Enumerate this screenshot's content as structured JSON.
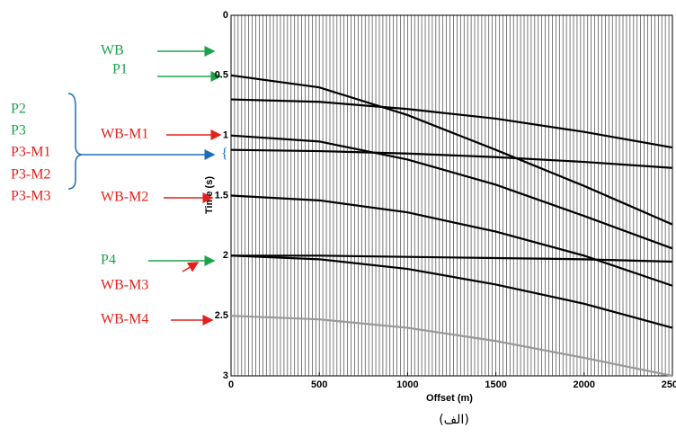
{
  "chart_data": {
    "type": "line",
    "title": "(الف)",
    "xlabel": "Offset (m)",
    "ylabel": "Time (s)",
    "x": [
      0,
      500,
      1000,
      1500,
      2000,
      2500
    ],
    "xlim": [
      0,
      2500
    ],
    "xticks": [
      0,
      500,
      1000,
      1500,
      2000,
      2500
    ],
    "ylim": [
      3,
      0
    ],
    "yticks": [
      0,
      0.5,
      1,
      1.5,
      2,
      2.5,
      3
    ],
    "series": [
      {
        "color": "#000000",
        "values": [
          0.5,
          0.6,
          0.83,
          1.12,
          1.42,
          1.74
        ]
      },
      {
        "color": "#000000",
        "values": [
          0.7,
          0.72,
          0.78,
          0.86,
          0.97,
          1.1
        ]
      },
      {
        "color": "#000000",
        "values": [
          1.12,
          1.13,
          1.15,
          1.18,
          1.22,
          1.27
        ]
      },
      {
        "color": "#000000",
        "values": [
          1.0,
          1.05,
          1.2,
          1.41,
          1.67,
          1.94
        ]
      },
      {
        "color": "#000000",
        "values": [
          1.5,
          1.54,
          1.64,
          1.8,
          2.0,
          2.25
        ]
      },
      {
        "color": "#000000",
        "values": [
          2.0,
          2.0,
          2.01,
          2.02,
          2.03,
          2.05
        ]
      },
      {
        "color": "#000000",
        "values": [
          2.0,
          2.03,
          2.11,
          2.24,
          2.4,
          2.6
        ]
      },
      {
        "color": "#999999",
        "values": [
          2.5,
          2.53,
          2.6,
          2.71,
          2.85,
          3.0
        ]
      }
    ],
    "annotations": [
      {
        "text": "WB",
        "color": "#1aa34a"
      },
      {
        "text": "P1",
        "color": "#1aa34a"
      },
      {
        "text": "WB-M1",
        "color": "#e3201b"
      },
      {
        "text": "P2",
        "color": "#1aa34a"
      },
      {
        "text": "P3",
        "color": "#1aa34a"
      },
      {
        "text": "P3-M1",
        "color": "#e3201b"
      },
      {
        "text": "P3-M2",
        "color": "#e3201b"
      },
      {
        "text": "P3-M3",
        "color": "#e3201b"
      },
      {
        "text": "WB-M2",
        "color": "#e3201b"
      },
      {
        "text": "P4",
        "color": "#1aa34a"
      },
      {
        "text": "WB-M3",
        "color": "#e3201b"
      },
      {
        "text": "WB-M4",
        "color": "#e3201b"
      }
    ]
  }
}
